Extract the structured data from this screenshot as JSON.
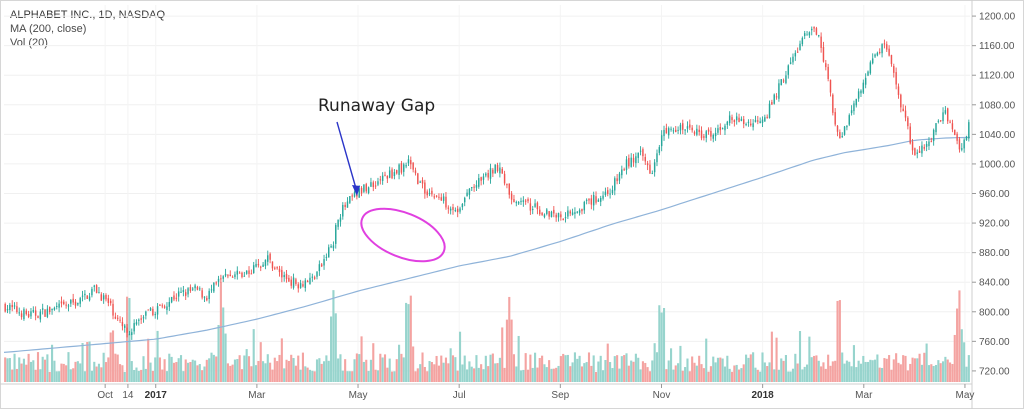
{
  "legend": {
    "title": "ALPHABET INC., 1D, NASDAQ",
    "ma": "MA (200, close)",
    "vol": "Vol (20)"
  },
  "colors": {
    "up": "#26a69a",
    "down": "#ef5350",
    "ma": "#8fb3d9",
    "vol_up": "#97d4cd",
    "vol_down": "#f4a3a1",
    "annotation_ellipse": "#e040e0",
    "annotation_arrow": "#2b35c8"
  },
  "annotation": {
    "label": "Runaway Gap"
  },
  "chart_data": {
    "type": "candlestick",
    "title": "ALPHABET INC., 1D, NASDAQ",
    "y_axis": {
      "position": "right",
      "ylim": [
        705,
        1215
      ],
      "ticks": [
        "720.00",
        "760.00",
        "800.00",
        "840.00",
        "880.00",
        "920.00",
        "960.00",
        "1000.00",
        "1040.00",
        "1080.00",
        "1120.00",
        "1160.00",
        "1200.00"
      ]
    },
    "x_axis": {
      "ticks": [
        {
          "label": "Oct",
          "bold": false,
          "month_index": 4.0
        },
        {
          "label": "14",
          "bold": false,
          "month_index": 4.45
        },
        {
          "label": "2017",
          "bold": true,
          "month_index": 5.0
        },
        {
          "label": "Mar",
          "bold": false,
          "month_index": 7.0
        },
        {
          "label": "May",
          "bold": false,
          "month_index": 9.0
        },
        {
          "label": "Jul",
          "bold": false,
          "month_index": 11.0
        },
        {
          "label": "Sep",
          "bold": false,
          "month_index": 13.0
        },
        {
          "label": "Nov",
          "bold": false,
          "month_index": 15.0
        },
        {
          "label": "2018",
          "bold": true,
          "month_index": 17.0
        },
        {
          "label": "Mar",
          "bold": false,
          "month_index": 19.0
        },
        {
          "label": "May",
          "bold": false,
          "month_index": 21.0
        }
      ],
      "month_index_range": [
        2.0,
        21.1
      ]
    },
    "close_path": [
      {
        "m": 2.0,
        "c": 808
      },
      {
        "m": 2.5,
        "c": 795
      },
      {
        "m": 3.0,
        "c": 803
      },
      {
        "m": 3.5,
        "c": 815
      },
      {
        "m": 3.8,
        "c": 832
      },
      {
        "m": 4.1,
        "c": 808
      },
      {
        "m": 4.3,
        "c": 782
      },
      {
        "m": 4.45,
        "c": 772
      },
      {
        "m": 4.7,
        "c": 790
      },
      {
        "m": 5.0,
        "c": 803
      },
      {
        "m": 5.4,
        "c": 822
      },
      {
        "m": 5.8,
        "c": 830
      },
      {
        "m": 6.0,
        "c": 820
      },
      {
        "m": 6.3,
        "c": 845
      },
      {
        "m": 6.8,
        "c": 852
      },
      {
        "m": 7.2,
        "c": 873
      },
      {
        "m": 7.5,
        "c": 848
      },
      {
        "m": 7.8,
        "c": 838
      },
      {
        "m": 8.1,
        "c": 845
      },
      {
        "m": 8.3,
        "c": 865
      },
      {
        "m": 8.45,
        "c": 888
      },
      {
        "m": 8.5,
        "c": 890
      },
      {
        "m": 8.6,
        "c": 930
      },
      {
        "m": 8.9,
        "c": 955
      },
      {
        "m": 9.2,
        "c": 970
      },
      {
        "m": 9.6,
        "c": 985
      },
      {
        "m": 10.0,
        "c": 1000
      },
      {
        "m": 10.3,
        "c": 965
      },
      {
        "m": 10.7,
        "c": 950
      },
      {
        "m": 11.0,
        "c": 935
      },
      {
        "m": 11.2,
        "c": 965
      },
      {
        "m": 11.5,
        "c": 980
      },
      {
        "m": 11.8,
        "c": 1000
      },
      {
        "m": 12.0,
        "c": 955
      },
      {
        "m": 12.5,
        "c": 940
      },
      {
        "m": 13.0,
        "c": 930
      },
      {
        "m": 13.5,
        "c": 945
      },
      {
        "m": 14.0,
        "c": 965
      },
      {
        "m": 14.3,
        "c": 1000
      },
      {
        "m": 14.6,
        "c": 1012
      },
      {
        "m": 14.8,
        "c": 990
      },
      {
        "m": 15.0,
        "c": 1040
      },
      {
        "m": 15.5,
        "c": 1050
      },
      {
        "m": 16.0,
        "c": 1035
      },
      {
        "m": 16.3,
        "c": 1060
      },
      {
        "m": 16.8,
        "c": 1055
      },
      {
        "m": 17.1,
        "c": 1070
      },
      {
        "m": 17.4,
        "c": 1115
      },
      {
        "m": 17.8,
        "c": 1170
      },
      {
        "m": 18.1,
        "c": 1182
      },
      {
        "m": 18.3,
        "c": 1110
      },
      {
        "m": 18.5,
        "c": 1030
      },
      {
        "m": 18.8,
        "c": 1080
      },
      {
        "m": 19.1,
        "c": 1130
      },
      {
        "m": 19.4,
        "c": 1165
      },
      {
        "m": 19.7,
        "c": 1090
      },
      {
        "m": 20.0,
        "c": 1010
      },
      {
        "m": 20.3,
        "c": 1030
      },
      {
        "m": 20.6,
        "c": 1075
      },
      {
        "m": 20.9,
        "c": 1020
      },
      {
        "m": 21.1,
        "c": 1055
      }
    ],
    "ma_path": [
      {
        "m": 2.0,
        "c": 745
      },
      {
        "m": 4.0,
        "c": 757
      },
      {
        "m": 5.0,
        "c": 763
      },
      {
        "m": 6.0,
        "c": 775
      },
      {
        "m": 7.0,
        "c": 790
      },
      {
        "m": 8.0,
        "c": 808
      },
      {
        "m": 9.0,
        "c": 828
      },
      {
        "m": 10.0,
        "c": 845
      },
      {
        "m": 11.0,
        "c": 862
      },
      {
        "m": 12.0,
        "c": 875
      },
      {
        "m": 13.0,
        "c": 895
      },
      {
        "m": 14.0,
        "c": 918
      },
      {
        "m": 15.0,
        "c": 938
      },
      {
        "m": 16.0,
        "c": 960
      },
      {
        "m": 17.0,
        "c": 982
      },
      {
        "m": 18.0,
        "c": 1005
      },
      {
        "m": 18.6,
        "c": 1015
      },
      {
        "m": 19.5,
        "c": 1025
      },
      {
        "m": 20.0,
        "c": 1032
      },
      {
        "m": 20.6,
        "c": 1035
      },
      {
        "m": 21.1,
        "c": 1036
      }
    ],
    "volume_spikes_month_index": [
      4.45,
      6.3,
      8.5,
      10.0,
      12.0,
      15.0,
      18.5,
      20.9
    ],
    "candle_count": 412
  }
}
